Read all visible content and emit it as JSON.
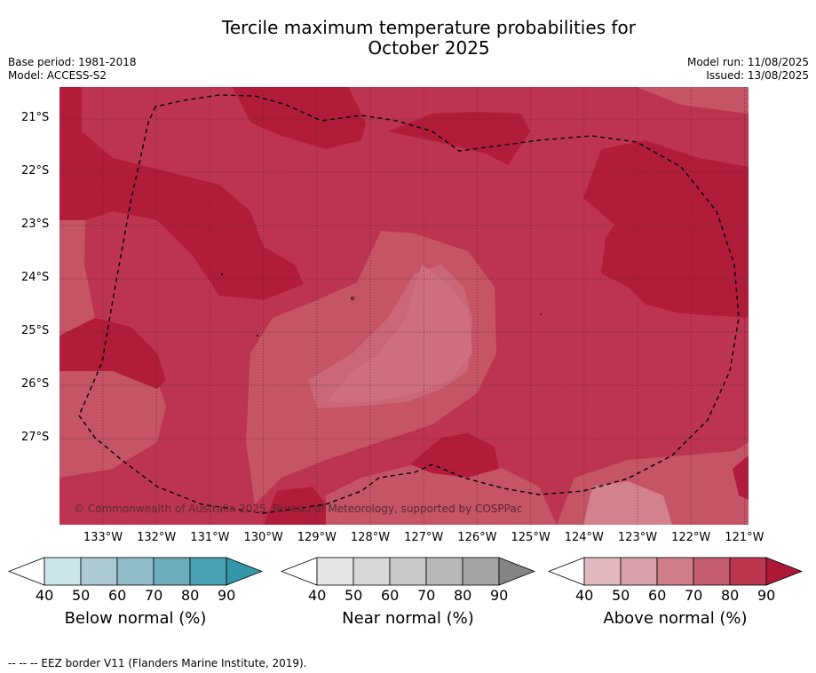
{
  "title_line1": "Tercile maximum temperature probabilities for",
  "title_line2": "October 2025",
  "base_period": "Base period: 1981-2018",
  "model": "Model: ACCESS-S2",
  "model_run": "Model run: 11/08/2025",
  "issued": "Issued: 13/08/2025",
  "lat_labels": [
    "21°S",
    "22°S",
    "23°S",
    "24°S",
    "25°S",
    "26°S",
    "27°S"
  ],
  "lon_labels": [
    "133°W",
    "132°W",
    "131°W",
    "130°W",
    "129°W",
    "128°W",
    "127°W",
    "126°W",
    "125°W",
    "124°W",
    "123°W",
    "122°W",
    "121°W"
  ],
  "copyright": "© Commonwealth of Australia 2025, Bureau of Meteorology, supported by COSPPac",
  "colorbars": [
    {
      "title": "Below normal (%)",
      "ticks": [
        "40",
        "50",
        "60",
        "70",
        "80",
        "90"
      ],
      "colors": [
        "#cde4ea",
        "#abcad1",
        "#8fbcc7",
        "#6cadbc",
        "#4ba2b2",
        "#3396a9"
      ]
    },
    {
      "title": "Near normal (%)",
      "ticks": [
        "40",
        "50",
        "60",
        "70",
        "80",
        "90"
      ],
      "colors": [
        "#e6e6e6",
        "#d8d8d8",
        "#cacaca",
        "#b8b8b8",
        "#a3a3a3",
        "#848484"
      ]
    },
    {
      "title": "Above normal (%)",
      "ticks": [
        "40",
        "50",
        "60",
        "70",
        "80",
        "90"
      ],
      "colors": [
        "#e3b9c0",
        "#d8a0a9",
        "#cf7e8a",
        "#c55e6f",
        "#bd3650",
        "#ad1836"
      ]
    }
  ],
  "footnote": "--  --  -- EEZ border V11 (Flanders Marine Institute, 2019).",
  "map_colors": {
    "base": "#bd3450",
    "dark": "#b21c3b",
    "light": "#c55466",
    "lighter": "#ca6877",
    "lightest": "#d89aa3"
  }
}
